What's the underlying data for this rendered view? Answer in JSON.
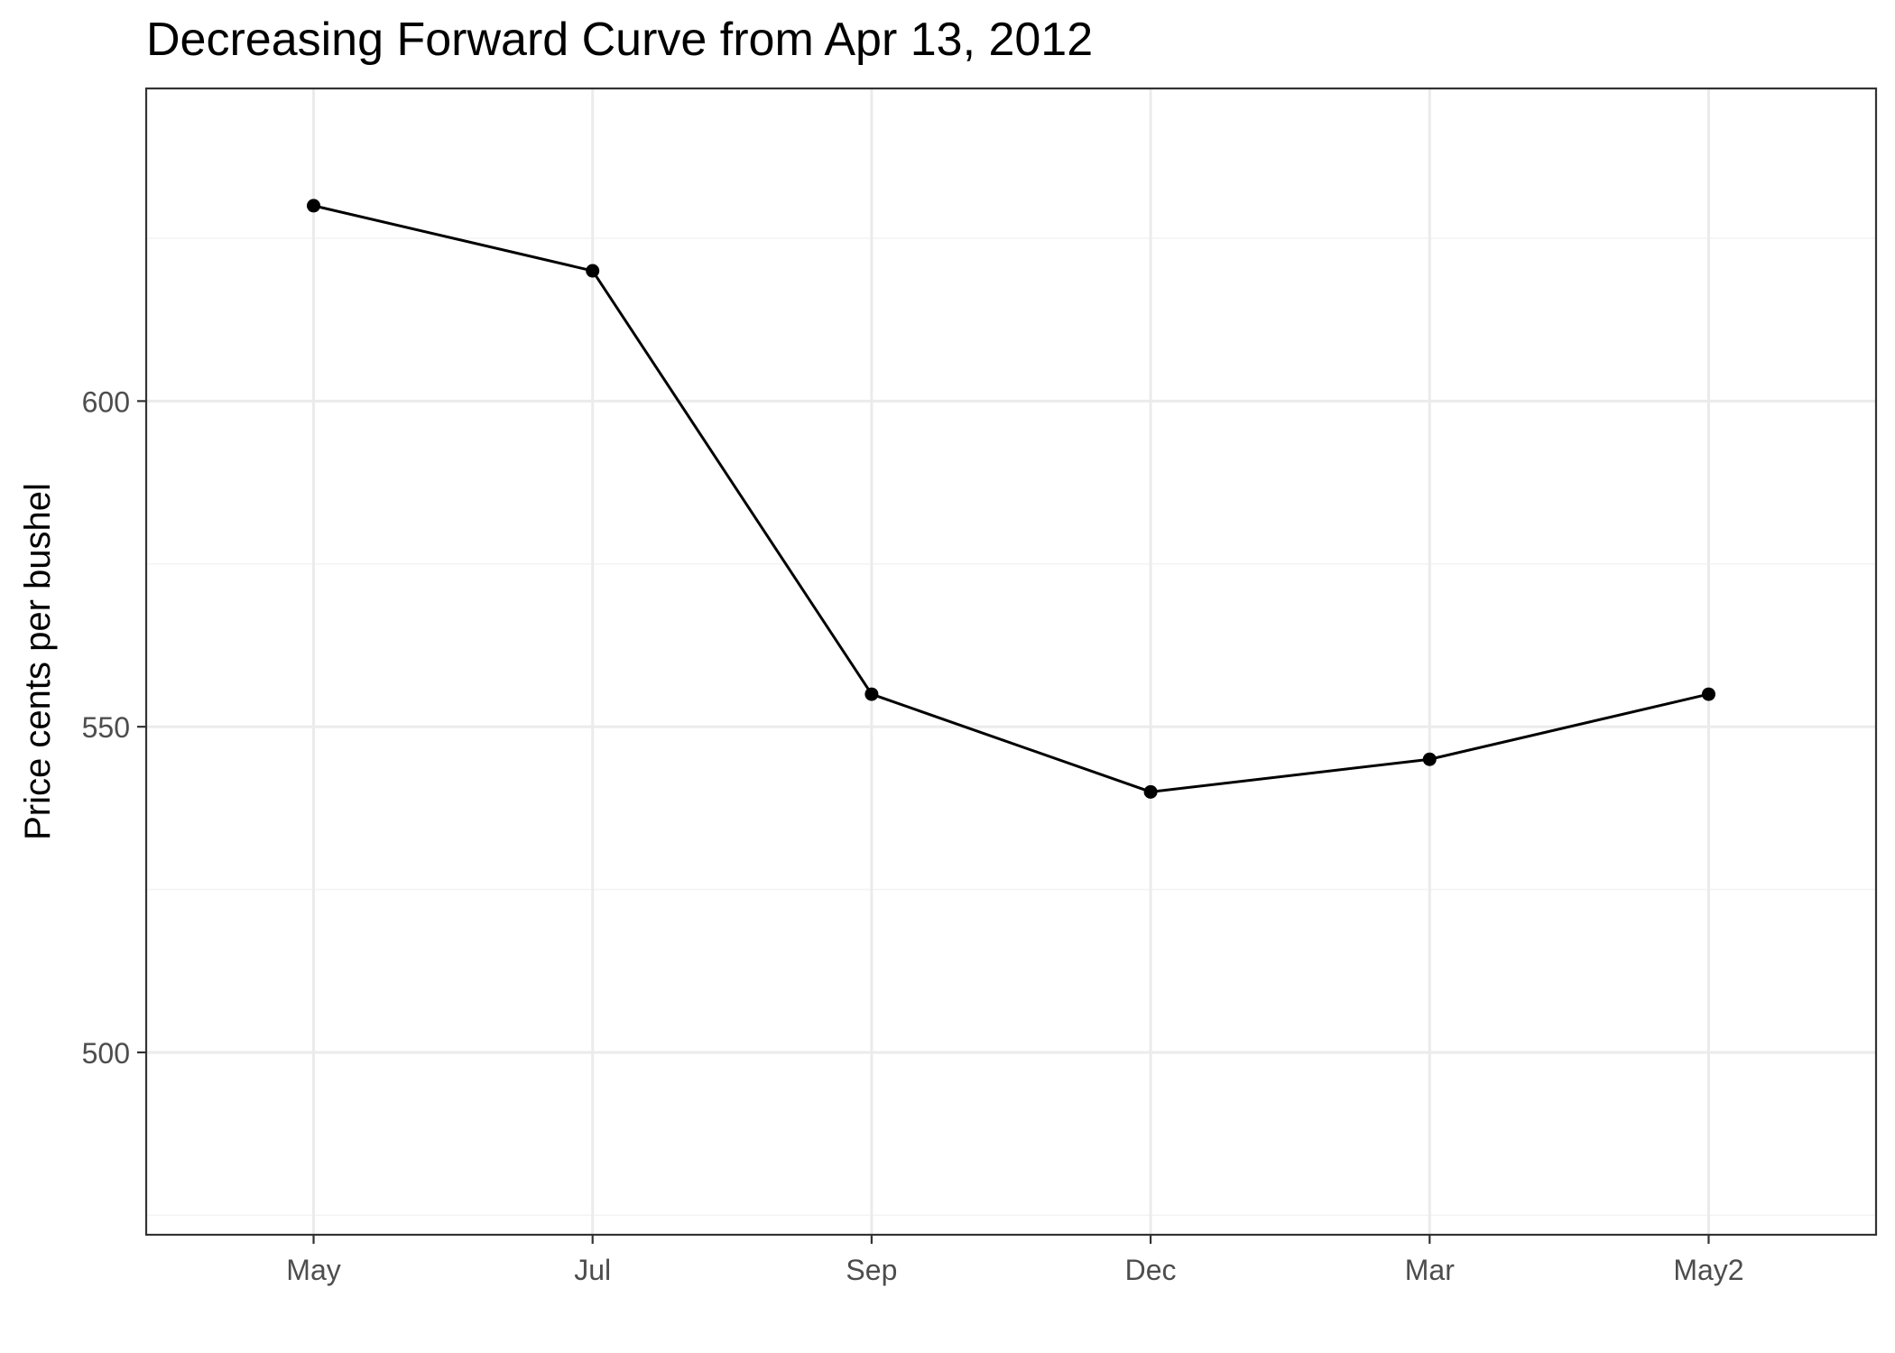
{
  "chart_data": {
    "type": "line",
    "title": "Decreasing Forward Curve from Apr 13, 2012",
    "xlabel": "",
    "ylabel": "Price cents per bushel",
    "categories": [
      "May",
      "Jul",
      "Sep",
      "Dec",
      "Mar",
      "May2"
    ],
    "series": [
      {
        "values": [
          630,
          620,
          555,
          540,
          545,
          555
        ]
      }
    ],
    "ylim": [
      472,
      648
    ],
    "yticks": [
      500,
      550,
      600
    ],
    "grid": true,
    "colors": {
      "line": "#000000",
      "grid_major": "#ebebeb",
      "grid_minor": "#f3f3f3",
      "panel_border": "#333333",
      "tick_label": "#4d4d4d"
    }
  }
}
